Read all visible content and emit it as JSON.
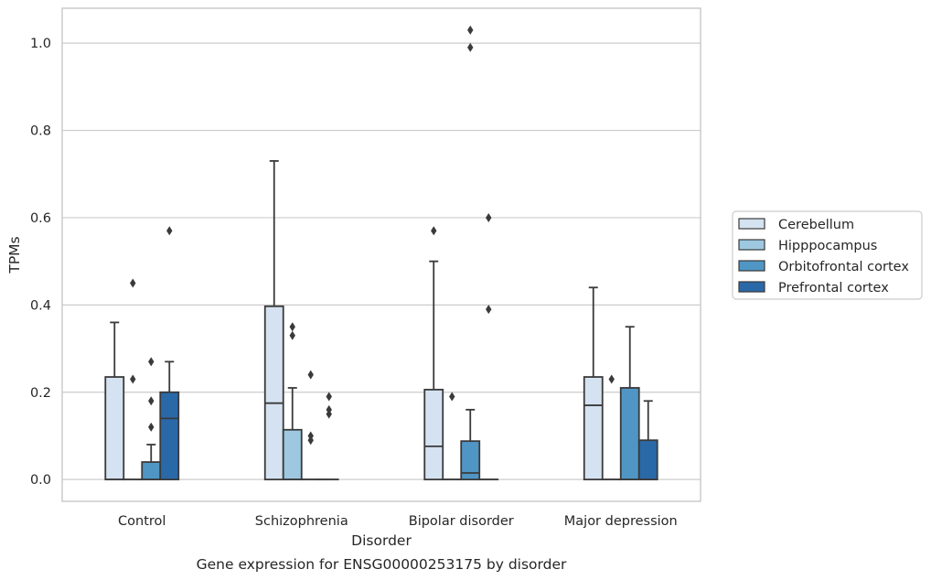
{
  "chart_data": {
    "type": "box",
    "title": "",
    "caption": "Gene expression for ENSG00000253175 by disorder",
    "xlabel": "Disorder",
    "ylabel": "TPMs",
    "ylim": [
      -0.05,
      1.08
    ],
    "yticks": [
      "0.0",
      "0.2",
      "0.4",
      "0.6",
      "0.8",
      "1.0"
    ],
    "grid": "horizontal",
    "legend_position": "right",
    "categories": [
      "Control",
      "Schizophrenia",
      "Bipolar disorder",
      "Major depression"
    ],
    "series": [
      {
        "name": "Cerebellum",
        "color": "#d4e2f1",
        "boxes": [
          {
            "q1": 0.0,
            "median": 0.0,
            "q3": 0.235,
            "whisker_low": 0.0,
            "whisker_high": 0.36,
            "outliers": []
          },
          {
            "q1": 0.0,
            "median": 0.175,
            "q3": 0.397,
            "whisker_low": 0.0,
            "whisker_high": 0.73,
            "outliers": []
          },
          {
            "q1": 0.0,
            "median": 0.076,
            "q3": 0.206,
            "whisker_low": 0.0,
            "whisker_high": 0.5,
            "outliers": [
              0.57
            ]
          },
          {
            "q1": 0.0,
            "median": 0.17,
            "q3": 0.235,
            "whisker_low": 0.0,
            "whisker_high": 0.44,
            "outliers": []
          }
        ]
      },
      {
        "name": "Hipppocampus",
        "color": "#9dc8e0",
        "boxes": [
          {
            "q1": 0.0,
            "median": 0.0,
            "q3": 0.0,
            "whisker_low": 0.0,
            "whisker_high": 0.0,
            "outliers": [
              0.23,
              0.45
            ]
          },
          {
            "q1": 0.0,
            "median": 0.0,
            "q3": 0.114,
            "whisker_low": 0.0,
            "whisker_high": 0.21,
            "outliers": [
              0.33,
              0.35
            ]
          },
          {
            "q1": 0.0,
            "median": 0.0,
            "q3": 0.0,
            "whisker_low": 0.0,
            "whisker_high": 0.0,
            "outliers": [
              0.19
            ]
          },
          {
            "q1": 0.0,
            "median": 0.0,
            "q3": 0.0,
            "whisker_low": 0.0,
            "whisker_high": 0.0,
            "outliers": [
              0.23
            ]
          }
        ]
      },
      {
        "name": "Orbitofrontal cortex",
        "color": "#5096c5",
        "boxes": [
          {
            "q1": 0.0,
            "median": 0.0,
            "q3": 0.04,
            "whisker_low": 0.0,
            "whisker_high": 0.08,
            "outliers": [
              0.12,
              0.18,
              0.27
            ]
          },
          {
            "q1": 0.0,
            "median": 0.0,
            "q3": 0.0,
            "whisker_low": 0.0,
            "whisker_high": 0.0,
            "outliers": [
              0.09,
              0.1,
              0.24
            ]
          },
          {
            "q1": 0.0,
            "median": 0.015,
            "q3": 0.088,
            "whisker_low": 0.0,
            "whisker_high": 0.16,
            "outliers": [
              0.99,
              1.03
            ]
          },
          {
            "q1": 0.0,
            "median": 0.0,
            "q3": 0.21,
            "whisker_low": 0.0,
            "whisker_high": 0.35,
            "outliers": []
          }
        ]
      },
      {
        "name": "Prefrontal cortex",
        "color": "#2a69a8",
        "boxes": [
          {
            "q1": 0.0,
            "median": 0.14,
            "q3": 0.2,
            "whisker_low": 0.0,
            "whisker_high": 0.27,
            "outliers": [
              0.57
            ]
          },
          {
            "q1": 0.0,
            "median": 0.0,
            "q3": 0.0,
            "whisker_low": 0.0,
            "whisker_high": 0.0,
            "outliers": [
              0.15,
              0.16,
              0.19
            ]
          },
          {
            "q1": 0.0,
            "median": 0.0,
            "q3": 0.0,
            "whisker_low": 0.0,
            "whisker_high": 0.0,
            "outliers": [
              0.39,
              0.6
            ]
          },
          {
            "q1": 0.0,
            "median": 0.0,
            "q3": 0.09,
            "whisker_low": 0.0,
            "whisker_high": 0.18,
            "outliers": []
          }
        ]
      }
    ]
  }
}
